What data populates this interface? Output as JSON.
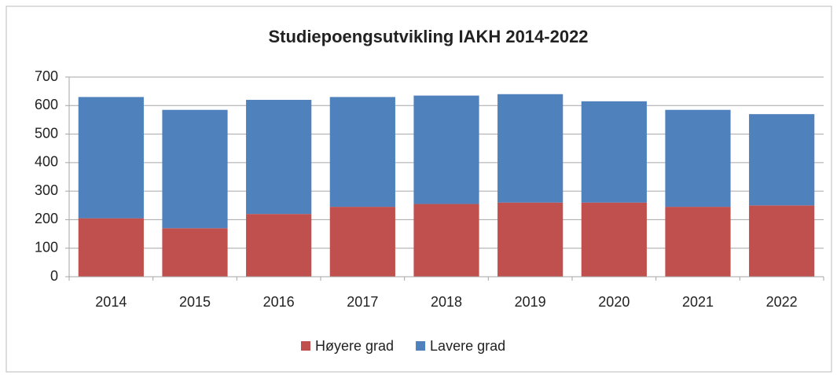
{
  "chart_data": {
    "type": "stacked_bar",
    "title": "Studiepoengsutvikling IAKH 2014-2022",
    "categories": [
      "2014",
      "2015",
      "2016",
      "2017",
      "2018",
      "2019",
      "2020",
      "2021",
      "2022"
    ],
    "series": [
      {
        "name": "Høyere grad",
        "color": "#c0504d",
        "values": [
          205,
          170,
          220,
          245,
          255,
          260,
          260,
          245,
          250
        ]
      },
      {
        "name": "Lavere grad",
        "color": "#4f81bd",
        "values": [
          425,
          415,
          400,
          385,
          380,
          380,
          355,
          340,
          320
        ]
      }
    ],
    "ylim": [
      0,
      700
    ],
    "yticks": [
      0,
      100,
      200,
      300,
      400,
      500,
      600,
      700
    ],
    "grid": true,
    "legend": "bottom"
  }
}
